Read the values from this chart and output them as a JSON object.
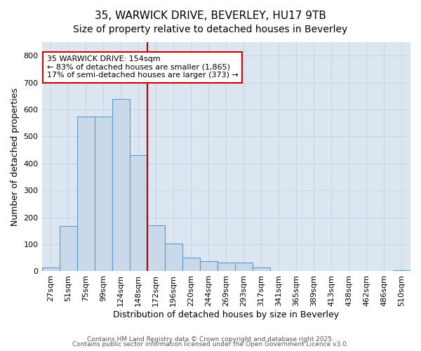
{
  "title_line1": "35, WARWICK DRIVE, BEVERLEY, HU17 9TB",
  "title_line2": "Size of property relative to detached houses in Beverley",
  "xlabel": "Distribution of detached houses by size in Beverley",
  "ylabel": "Number of detached properties",
  "bin_labels": [
    "27sqm",
    "51sqm",
    "75sqm",
    "99sqm",
    "124sqm",
    "148sqm",
    "172sqm",
    "196sqm",
    "220sqm",
    "244sqm",
    "269sqm",
    "293sqm",
    "317sqm",
    "341sqm",
    "365sqm",
    "389sqm",
    "413sqm",
    "438sqm",
    "462sqm",
    "486sqm",
    "510sqm"
  ],
  "bar_values": [
    15,
    168,
    575,
    575,
    640,
    430,
    170,
    103,
    50,
    38,
    32,
    32,
    13,
    0,
    0,
    0,
    0,
    0,
    0,
    0,
    5
  ],
  "bar_color": "#c9d9ea",
  "bar_edge_color": "#5b9bd5",
  "vline_color": "#aa0000",
  "annotation_text": "35 WARWICK DRIVE: 154sqm\n← 83% of detached houses are smaller (1,865)\n17% of semi-detached houses are larger (373) →",
  "annotation_box_color": "#ffffff",
  "annotation_box_edge": "#cc0000",
  "ylim": [
    0,
    850
  ],
  "yticks": [
    0,
    100,
    200,
    300,
    400,
    500,
    600,
    700,
    800
  ],
  "grid_color": "#c8d4e3",
  "bg_color": "#dce6f0",
  "footer_line1": "Contains HM Land Registry data © Crown copyright and database right 2025.",
  "footer_line2": "Contains public sector information licensed under the Open Government Licence v3.0.",
  "title_fontsize": 11,
  "subtitle_fontsize": 10,
  "xlabel_fontsize": 9,
  "ylabel_fontsize": 9,
  "tick_fontsize": 8,
  "footer_fontsize": 6.5,
  "annotation_fontsize": 8
}
